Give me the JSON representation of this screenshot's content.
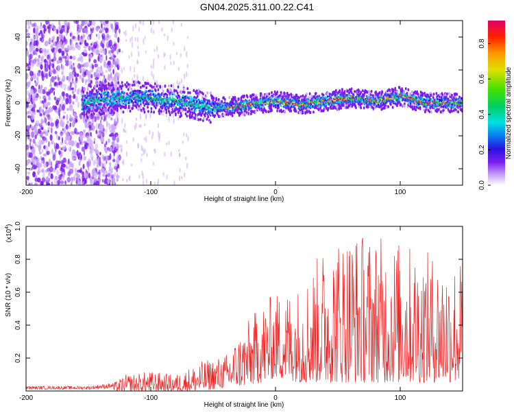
{
  "title": "GN04.2025.311.00.22.C41",
  "chart_data": [
    {
      "type": "heatmap",
      "xlabel": "Height of straight line (km)",
      "ylabel": "Frequency (Hz)",
      "xlim": [
        -200,
        150
      ],
      "ylim": [
        -50,
        50
      ],
      "xticks": [
        -200,
        -100,
        0,
        100
      ],
      "yticks": [
        -40,
        -20,
        0,
        20,
        40
      ],
      "colorbar": {
        "label": "Normalized spectral amplitude",
        "range": [
          0,
          0.93
        ],
        "ticks": [
          0.0,
          0.2,
          0.4,
          0.6,
          0.8
        ],
        "tick_labels": [
          "0.0",
          "0.2",
          "0.4",
          "0.6",
          "0.8"
        ],
        "colors": [
          "#ffffff",
          "#c9a6f5",
          "#7a1ef0",
          "#2a12e0",
          "#0a7cf0",
          "#00e0e0",
          "#00d060",
          "#40e000",
          "#e0e000",
          "#ff9900",
          "#ff2000",
          "#e0006a"
        ]
      },
      "ridge_center_hz": [
        {
          "x": -150,
          "y": 1
        },
        {
          "x": -130,
          "y": 3
        },
        {
          "x": -110,
          "y": 4
        },
        {
          "x": -90,
          "y": 2
        },
        {
          "x": -70,
          "y": 0
        },
        {
          "x": -50,
          "y": -3
        },
        {
          "x": -30,
          "y": -2
        },
        {
          "x": -10,
          "y": 0
        },
        {
          "x": 0,
          "y": 1
        },
        {
          "x": 20,
          "y": -1
        },
        {
          "x": 40,
          "y": 1
        },
        {
          "x": 60,
          "y": 3
        },
        {
          "x": 80,
          "y": 1
        },
        {
          "x": 100,
          "y": 4
        },
        {
          "x": 120,
          "y": 0
        },
        {
          "x": 150,
          "y": 0
        }
      ]
    },
    {
      "type": "line",
      "color": "#ee2222",
      "xlabel": "Height of straight line (km)",
      "ylabel": "SNR (10 * v/v)",
      "yscale_label": "(x10",
      "yscale_exp": "4",
      "yscale_close": ")",
      "xlim": [
        -200,
        150
      ],
      "ylim": [
        0,
        1.0
      ],
      "xticks": [
        -200,
        -100,
        0,
        100
      ],
      "yticks": [
        0.2,
        0.4,
        0.6,
        0.8,
        1.0
      ],
      "ytick_labels": [
        "0.2",
        "0.4",
        "0.6",
        "0.8",
        "1.0"
      ],
      "envelope_x10e4": [
        {
          "x": -200,
          "min": 0.0,
          "max": 0.03
        },
        {
          "x": -150,
          "min": 0.0,
          "max": 0.03
        },
        {
          "x": -130,
          "min": 0.0,
          "max": 0.05
        },
        {
          "x": -120,
          "min": 0.0,
          "max": 0.1
        },
        {
          "x": -100,
          "min": 0.0,
          "max": 0.12
        },
        {
          "x": -80,
          "min": 0.0,
          "max": 0.1
        },
        {
          "x": -60,
          "min": 0.0,
          "max": 0.18
        },
        {
          "x": -40,
          "min": 0.02,
          "max": 0.22
        },
        {
          "x": -25,
          "min": 0.03,
          "max": 0.4
        },
        {
          "x": -10,
          "min": 0.05,
          "max": 0.55
        },
        {
          "x": 0,
          "min": 0.08,
          "max": 0.6
        },
        {
          "x": 20,
          "min": 0.05,
          "max": 0.65
        },
        {
          "x": 40,
          "min": 0.05,
          "max": 0.9
        },
        {
          "x": 60,
          "min": 0.05,
          "max": 1.0
        },
        {
          "x": 80,
          "min": 0.05,
          "max": 0.95
        },
        {
          "x": 100,
          "min": 0.05,
          "max": 0.92
        },
        {
          "x": 120,
          "min": 0.05,
          "max": 0.85
        },
        {
          "x": 150,
          "min": 0.05,
          "max": 0.8
        }
      ]
    }
  ]
}
